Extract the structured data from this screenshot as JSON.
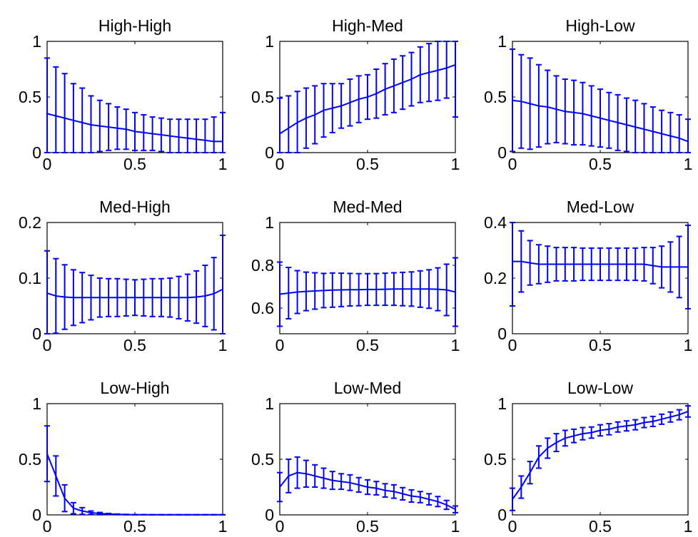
{
  "chart_data": [
    {
      "type": "errorbar",
      "title": "High-High",
      "xlim": [
        0,
        1
      ],
      "ylim": [
        0,
        1
      ],
      "xticks": [
        "0",
        "0.5",
        "1"
      ],
      "yticks": [
        "0",
        "0.5",
        "1"
      ],
      "x": [
        0,
        0.05,
        0.1,
        0.15,
        0.2,
        0.25,
        0.3,
        0.35,
        0.4,
        0.45,
        0.5,
        0.55,
        0.6,
        0.65,
        0.7,
        0.75,
        0.8,
        0.85,
        0.9,
        0.95,
        1
      ],
      "y": [
        0.35,
        0.33,
        0.31,
        0.29,
        0.27,
        0.25,
        0.24,
        0.23,
        0.22,
        0.21,
        0.19,
        0.18,
        0.17,
        0.16,
        0.15,
        0.14,
        0.13,
        0.12,
        0.11,
        0.1,
        0.1
      ],
      "err": [
        0.5,
        0.44,
        0.4,
        0.33,
        0.31,
        0.26,
        0.23,
        0.21,
        0.19,
        0.18,
        0.17,
        0.16,
        0.15,
        0.15,
        0.15,
        0.16,
        0.17,
        0.18,
        0.19,
        0.22,
        0.26
      ],
      "color": "#0000ff"
    },
    {
      "type": "errorbar",
      "title": "High-Med",
      "xlim": [
        0,
        1
      ],
      "ylim": [
        0,
        1
      ],
      "xticks": [
        "0",
        "0.5",
        "1"
      ],
      "yticks": [
        "0",
        "0.5",
        "1"
      ],
      "x": [
        0,
        0.05,
        0.1,
        0.15,
        0.2,
        0.25,
        0.3,
        0.35,
        0.4,
        0.45,
        0.5,
        0.55,
        0.6,
        0.65,
        0.7,
        0.75,
        0.8,
        0.85,
        0.9,
        0.95,
        1
      ],
      "y": [
        0.17,
        0.22,
        0.27,
        0.31,
        0.34,
        0.38,
        0.4,
        0.42,
        0.45,
        0.48,
        0.5,
        0.53,
        0.57,
        0.6,
        0.63,
        0.66,
        0.7,
        0.72,
        0.74,
        0.76,
        0.79
      ],
      "err": [
        0.32,
        0.29,
        0.28,
        0.27,
        0.26,
        0.24,
        0.22,
        0.2,
        0.21,
        0.21,
        0.2,
        0.22,
        0.23,
        0.24,
        0.24,
        0.24,
        0.25,
        0.26,
        0.27,
        0.27,
        0.47
      ],
      "color": "#0000ff"
    },
    {
      "type": "errorbar",
      "title": "High-Low",
      "xlim": [
        0,
        1
      ],
      "ylim": [
        0,
        1
      ],
      "xticks": [
        "0",
        "0.5",
        "1"
      ],
      "yticks": [
        "0",
        "0.5",
        "1"
      ],
      "x": [
        0,
        0.05,
        0.1,
        0.15,
        0.2,
        0.25,
        0.3,
        0.35,
        0.4,
        0.45,
        0.5,
        0.55,
        0.6,
        0.65,
        0.7,
        0.75,
        0.8,
        0.85,
        0.9,
        0.95,
        1
      ],
      "y": [
        0.47,
        0.46,
        0.44,
        0.42,
        0.41,
        0.39,
        0.37,
        0.36,
        0.35,
        0.33,
        0.31,
        0.29,
        0.27,
        0.25,
        0.23,
        0.21,
        0.19,
        0.17,
        0.15,
        0.13,
        0.1
      ],
      "err": [
        0.46,
        0.42,
        0.41,
        0.37,
        0.33,
        0.3,
        0.29,
        0.29,
        0.28,
        0.27,
        0.26,
        0.25,
        0.25,
        0.24,
        0.24,
        0.23,
        0.22,
        0.21,
        0.21,
        0.21,
        0.2
      ],
      "color": "#0000ff"
    },
    {
      "type": "errorbar",
      "title": "Med-High",
      "xlim": [
        0,
        1
      ],
      "ylim": [
        0,
        0.2
      ],
      "xticks": [
        "0",
        "0.5",
        "1"
      ],
      "yticks": [
        "0",
        "0.1",
        "0.2"
      ],
      "x": [
        0,
        0.05,
        0.1,
        0.15,
        0.2,
        0.25,
        0.3,
        0.35,
        0.4,
        0.45,
        0.5,
        0.55,
        0.6,
        0.65,
        0.7,
        0.75,
        0.8,
        0.85,
        0.9,
        0.95,
        1
      ],
      "y": [
        0.073,
        0.068,
        0.066,
        0.065,
        0.065,
        0.065,
        0.065,
        0.065,
        0.065,
        0.065,
        0.065,
        0.065,
        0.065,
        0.065,
        0.065,
        0.065,
        0.065,
        0.066,
        0.068,
        0.072,
        0.08
      ],
      "err": [
        0.076,
        0.067,
        0.058,
        0.05,
        0.045,
        0.04,
        0.035,
        0.034,
        0.034,
        0.033,
        0.032,
        0.033,
        0.034,
        0.034,
        0.035,
        0.038,
        0.042,
        0.047,
        0.055,
        0.065,
        0.097
      ],
      "color": "#0000ff"
    },
    {
      "type": "errorbar",
      "title": "Med-Med",
      "xlim": [
        0,
        1
      ],
      "ylim": [
        0.48,
        1
      ],
      "xticks": [
        "0",
        "0.5",
        "1"
      ],
      "yticks": [
        "0.6",
        "0.8",
        "1"
      ],
      "x": [
        0,
        0.05,
        0.1,
        0.15,
        0.2,
        0.25,
        0.3,
        0.35,
        0.4,
        0.45,
        0.5,
        0.55,
        0.6,
        0.65,
        0.7,
        0.75,
        0.8,
        0.85,
        0.9,
        0.95,
        1
      ],
      "y": [
        0.665,
        0.67,
        0.675,
        0.678,
        0.68,
        0.682,
        0.684,
        0.685,
        0.686,
        0.686,
        0.687,
        0.687,
        0.688,
        0.689,
        0.689,
        0.689,
        0.689,
        0.689,
        0.688,
        0.685,
        0.675
      ],
      "err": [
        0.15,
        0.12,
        0.1,
        0.09,
        0.085,
        0.08,
        0.08,
        0.078,
        0.076,
        0.075,
        0.074,
        0.074,
        0.075,
        0.076,
        0.078,
        0.08,
        0.085,
        0.09,
        0.1,
        0.12,
        0.16
      ],
      "color": "#0000ff"
    },
    {
      "type": "errorbar",
      "title": "Med-Low",
      "xlim": [
        0,
        1
      ],
      "ylim": [
        0,
        0.4
      ],
      "xticks": [
        "0",
        "0.5",
        "1"
      ],
      "yticks": [
        "0",
        "0.2",
        "0.4"
      ],
      "x": [
        0,
        0.05,
        0.1,
        0.15,
        0.2,
        0.25,
        0.3,
        0.35,
        0.4,
        0.45,
        0.5,
        0.55,
        0.6,
        0.65,
        0.7,
        0.75,
        0.8,
        0.85,
        0.9,
        0.95,
        1
      ],
      "y": [
        0.26,
        0.26,
        0.255,
        0.25,
        0.25,
        0.25,
        0.25,
        0.25,
        0.25,
        0.25,
        0.25,
        0.25,
        0.25,
        0.25,
        0.25,
        0.25,
        0.245,
        0.24,
        0.24,
        0.24,
        0.24
      ],
      "err": [
        0.16,
        0.11,
        0.08,
        0.07,
        0.065,
        0.06,
        0.06,
        0.06,
        0.058,
        0.058,
        0.058,
        0.058,
        0.058,
        0.058,
        0.058,
        0.06,
        0.065,
        0.075,
        0.09,
        0.11,
        0.15
      ],
      "color": "#0000ff"
    },
    {
      "type": "errorbar",
      "title": "Low-High",
      "xlim": [
        0,
        1
      ],
      "ylim": [
        0,
        1
      ],
      "xticks": [
        "0",
        "0.5",
        "1"
      ],
      "yticks": [
        "0",
        "0.5",
        "1"
      ],
      "x": [
        0,
        0.05,
        0.1,
        0.15,
        0.2,
        0.25,
        0.3,
        0.35,
        0.4,
        0.45,
        0.5,
        0.55,
        0.6,
        0.65,
        0.7,
        0.75,
        0.8,
        0.85,
        0.9,
        0.95,
        1
      ],
      "y": [
        0.55,
        0.35,
        0.15,
        0.06,
        0.035,
        0.02,
        0.012,
        0.008,
        0.005,
        0.003,
        0.002,
        0.002,
        0.001,
        0.001,
        0.001,
        0.001,
        0.001,
        0.001,
        0.001,
        0.001,
        0.001
      ],
      "err": [
        0.25,
        0.18,
        0.12,
        0.05,
        0.03,
        0.015,
        0.01,
        0.005,
        0.003,
        0.002,
        0.001,
        0.001,
        0.001,
        0.001,
        0.001,
        0.001,
        0.001,
        0.001,
        0.001,
        0.001,
        0.001
      ],
      "color": "#0000ff"
    },
    {
      "type": "errorbar",
      "title": "Low-Med",
      "xlim": [
        0,
        1
      ],
      "ylim": [
        0,
        1
      ],
      "xticks": [
        "0",
        "0.5",
        "1"
      ],
      "yticks": [
        "0",
        "0.5",
        "1"
      ],
      "x": [
        0,
        0.05,
        0.1,
        0.15,
        0.2,
        0.25,
        0.3,
        0.35,
        0.4,
        0.45,
        0.5,
        0.55,
        0.6,
        0.65,
        0.7,
        0.75,
        0.8,
        0.85,
        0.9,
        0.95,
        1
      ],
      "y": [
        0.25,
        0.35,
        0.38,
        0.37,
        0.35,
        0.33,
        0.31,
        0.3,
        0.29,
        0.27,
        0.25,
        0.24,
        0.22,
        0.21,
        0.19,
        0.17,
        0.16,
        0.14,
        0.12,
        0.09,
        0.05
      ],
      "err": [
        0.13,
        0.15,
        0.14,
        0.12,
        0.1,
        0.09,
        0.08,
        0.07,
        0.07,
        0.065,
        0.065,
        0.06,
        0.06,
        0.06,
        0.055,
        0.055,
        0.05,
        0.05,
        0.045,
        0.04,
        0.03
      ],
      "color": "#0000ff"
    },
    {
      "type": "errorbar",
      "title": "Low-Low",
      "xlim": [
        0,
        1
      ],
      "ylim": [
        0,
        1
      ],
      "xticks": [
        "0",
        "0.5",
        "1"
      ],
      "yticks": [
        "0",
        "0.5",
        "1"
      ],
      "x": [
        0,
        0.05,
        0.1,
        0.15,
        0.2,
        0.25,
        0.3,
        0.35,
        0.4,
        0.45,
        0.5,
        0.55,
        0.6,
        0.65,
        0.7,
        0.75,
        0.8,
        0.85,
        0.9,
        0.95,
        1
      ],
      "y": [
        0.14,
        0.25,
        0.38,
        0.52,
        0.6,
        0.65,
        0.69,
        0.71,
        0.73,
        0.74,
        0.76,
        0.77,
        0.79,
        0.8,
        0.81,
        0.83,
        0.84,
        0.86,
        0.88,
        0.9,
        0.93
      ],
      "err": [
        0.1,
        0.1,
        0.1,
        0.1,
        0.09,
        0.08,
        0.07,
        0.06,
        0.055,
        0.05,
        0.05,
        0.05,
        0.045,
        0.045,
        0.045,
        0.045,
        0.045,
        0.045,
        0.045,
        0.045,
        0.05
      ],
      "color": "#0000ff"
    }
  ]
}
